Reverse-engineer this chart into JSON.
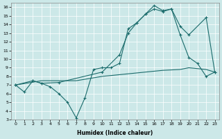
{
  "xlabel": "Humidex (Indice chaleur)",
  "xlim": [
    -0.5,
    23.5
  ],
  "ylim": [
    3,
    16.5
  ],
  "xticks": [
    0,
    1,
    2,
    3,
    4,
    5,
    6,
    7,
    8,
    9,
    10,
    11,
    12,
    13,
    14,
    15,
    16,
    17,
    18,
    19,
    20,
    21,
    22,
    23
  ],
  "yticks": [
    3,
    4,
    5,
    6,
    7,
    8,
    9,
    10,
    11,
    12,
    13,
    14,
    15,
    16
  ],
  "bg_color": "#cce8e8",
  "grid_color": "#aacccc",
  "line_color": "#1a6b6b",
  "line1_x": [
    0,
    1,
    2,
    3,
    4,
    5,
    6,
    7,
    8,
    9,
    10,
    11,
    12,
    13,
    14,
    15,
    16,
    17,
    18,
    19,
    20,
    21,
    22,
    23
  ],
  "line1_y": [
    7.0,
    6.2,
    7.5,
    7.2,
    6.8,
    6.0,
    5.0,
    3.2,
    5.5,
    8.8,
    9.0,
    9.0,
    9.5,
    13.5,
    14.2,
    15.2,
    16.2,
    15.6,
    15.8,
    12.8,
    10.2,
    9.5,
    8.0,
    8.5
  ],
  "line2_x": [
    0,
    2,
    3,
    5,
    10,
    12,
    13,
    14,
    15,
    16,
    17,
    18,
    19,
    20,
    22,
    23
  ],
  "line2_y": [
    7.0,
    7.5,
    7.2,
    7.3,
    8.5,
    10.5,
    13.0,
    14.2,
    15.2,
    15.8,
    15.5,
    15.8,
    13.8,
    12.8,
    14.8,
    8.5
  ],
  "line3_x": [
    0,
    3,
    7,
    10,
    15,
    17,
    19,
    20,
    22,
    23
  ],
  "line3_y": [
    7.0,
    7.5,
    7.5,
    8.0,
    8.5,
    8.7,
    8.8,
    9.0,
    8.8,
    8.5
  ]
}
